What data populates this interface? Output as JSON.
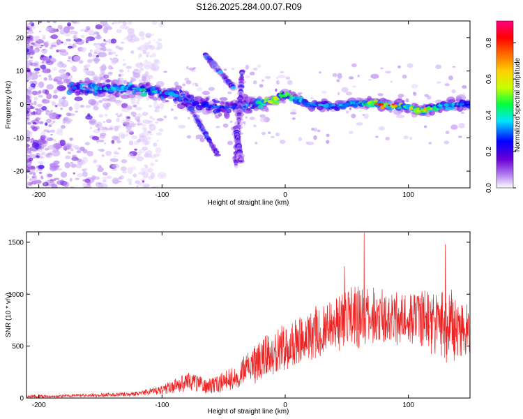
{
  "title": "S126.2025.284.00.07.R09",
  "chart_data": [
    {
      "type": "heatmap",
      "name": "spectrogram",
      "xlabel": "Height of straight line (km)",
      "ylabel": "Frequency (Hz)",
      "xlim": [
        -210,
        150
      ],
      "ylim": [
        -25,
        25
      ],
      "xticks": [
        -200,
        -100,
        0,
        100
      ],
      "yticks": [
        -20,
        -10,
        0,
        10,
        20
      ],
      "colorbar": {
        "label": "Normalized spectral amplitude",
        "ticks": [
          0.0,
          0.2,
          0.4,
          0.6,
          0.8
        ],
        "tick_labels": [
          "0.0",
          "0.2",
          "0.4",
          "0.6",
          "0.8"
        ],
        "range": [
          0,
          0.92
        ],
        "colors": [
          "#ffffff",
          "#b07cf0",
          "#6b00d6",
          "#0000ff",
          "#00e5ff",
          "#00ff40",
          "#c8ff00",
          "#ffd000",
          "#ff6a00",
          "#ff0000",
          "#ff007f"
        ]
      },
      "main_band": [
        {
          "x": -170,
          "y": 5,
          "amp": 0.35
        },
        {
          "x": -150,
          "y": 4.5,
          "amp": 0.4
        },
        {
          "x": -130,
          "y": 5,
          "amp": 0.35
        },
        {
          "x": -110,
          "y": 4,
          "amp": 0.4
        },
        {
          "x": -90,
          "y": 3,
          "amp": 0.3
        },
        {
          "x": -70,
          "y": 0,
          "amp": 0.25
        },
        {
          "x": -50,
          "y": -1,
          "amp": 0.25
        },
        {
          "x": -30,
          "y": 0,
          "amp": 0.3
        },
        {
          "x": -10,
          "y": 1,
          "amp": 0.6
        },
        {
          "x": 0,
          "y": 3,
          "amp": 0.45
        },
        {
          "x": 20,
          "y": 0,
          "amp": 0.35
        },
        {
          "x": 40,
          "y": -0.5,
          "amp": 0.3
        },
        {
          "x": 60,
          "y": 0.5,
          "amp": 0.35
        },
        {
          "x": 80,
          "y": 0,
          "amp": 0.75
        },
        {
          "x": 100,
          "y": -1,
          "amp": 0.5
        },
        {
          "x": 110,
          "y": -2,
          "amp": 0.6
        },
        {
          "x": 130,
          "y": 0,
          "amp": 0.35
        },
        {
          "x": 150,
          "y": 0,
          "amp": 0.3
        }
      ],
      "branches": [
        {
          "x1": -85,
          "y1": 4,
          "x2": -55,
          "y2": -15,
          "amp": 0.25
        },
        {
          "x1": -65,
          "y1": 15,
          "x2": -42,
          "y2": 5,
          "amp": 0.3
        },
        {
          "x1": -35,
          "y1": 10,
          "x2": -40,
          "y2": -18,
          "amp": 0.2
        },
        {
          "x1": -40,
          "y1": -7,
          "x2": -36,
          "y2": -17,
          "amp": 0.2
        }
      ]
    },
    {
      "type": "line",
      "name": "snr",
      "xlabel": "Height of straight line (km)",
      "ylabel": "SNR (10 * v/v)",
      "xlim": [
        -210,
        150
      ],
      "ylim": [
        0,
        1600
      ],
      "xticks": [
        -200,
        -100,
        0,
        100
      ],
      "yticks": [
        0,
        500,
        1000,
        1500
      ],
      "color": "#ee2222",
      "envelope": {
        "x": [
          -210,
          -180,
          -150,
          -120,
          -100,
          -80,
          -60,
          -40,
          -20,
          0,
          20,
          40,
          60,
          80,
          100,
          120,
          140,
          150
        ],
        "mean": [
          15,
          20,
          30,
          40,
          80,
          150,
          120,
          200,
          380,
          480,
          600,
          720,
          780,
          780,
          770,
          760,
          650,
          600
        ],
        "spread": [
          15,
          15,
          20,
          25,
          50,
          100,
          90,
          130,
          220,
          250,
          300,
          300,
          350,
          280,
          280,
          350,
          380,
          350
        ]
      },
      "peaks": [
        {
          "x": 64,
          "y": 1590
        },
        {
          "x": 130,
          "y": 1480
        },
        {
          "x": 48,
          "y": 1270
        }
      ]
    }
  ]
}
